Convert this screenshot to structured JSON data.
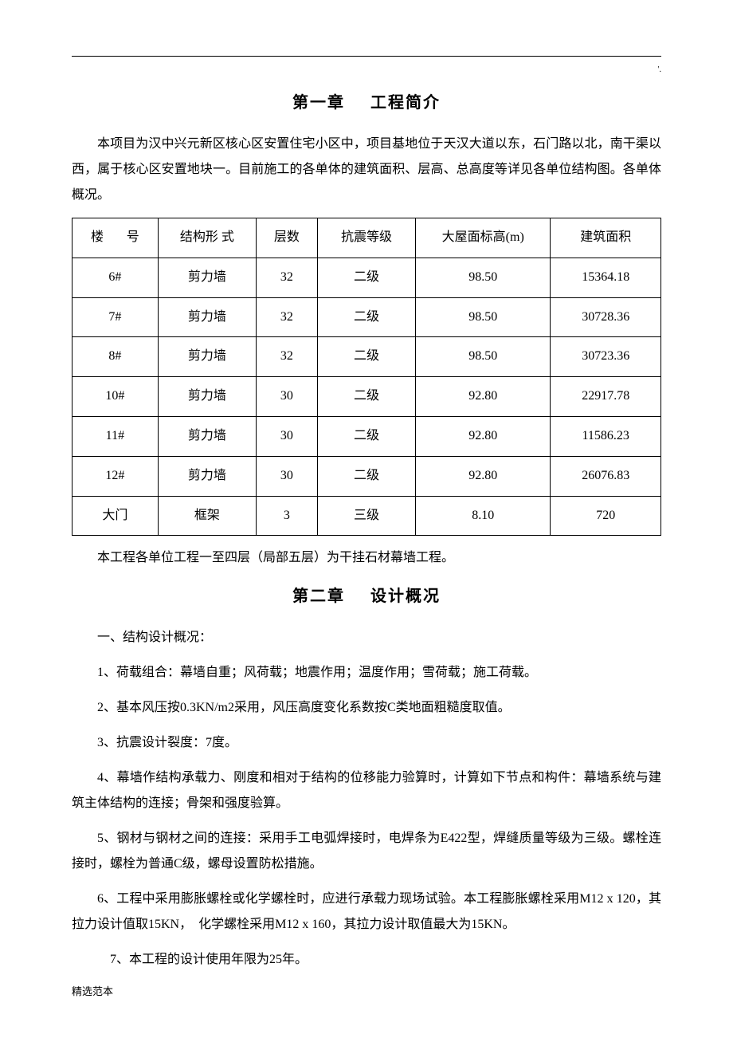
{
  "topDot": "'.",
  "chapter1": {
    "titleLeft": "第一章",
    "titleRight": "工程简介",
    "intro": "本项目为汉中兴元新区核心区安置住宅小区中，项目基地位于天汉大道以东，石门路以北，南干渠以西，属于核心区安置地块一。目前施工的各单体的建筑面积、层高、总高度等详见各单位结构图。各单体概况。",
    "table": {
      "headers": {
        "c0a": "楼",
        "c0b": "号",
        "c1a": "结构形",
        "c1b": "式",
        "c2": "层数",
        "c3": "抗震等级",
        "c4": "大屋面标高(m)",
        "c5": "建筑面积"
      },
      "rows": [
        {
          "c0": "6#",
          "c1": "剪力墙",
          "c2": "32",
          "c3": "二级",
          "c4": "98.50",
          "c5": "15364.18"
        },
        {
          "c0": "7#",
          "c1": "剪力墙",
          "c2": "32",
          "c3": "二级",
          "c4": "98.50",
          "c5": "30728.36"
        },
        {
          "c0": "8#",
          "c1": "剪力墙",
          "c2": "32",
          "c3": "二级",
          "c4": "98.50",
          "c5": "30723.36"
        },
        {
          "c0": "10#",
          "c1": "剪力墙",
          "c2": "30",
          "c3": "二级",
          "c4": "92.80",
          "c5": "22917.78"
        },
        {
          "c0": "11#",
          "c1": "剪力墙",
          "c2": "30",
          "c3": "二级",
          "c4": "92.80",
          "c5": "11586.23"
        },
        {
          "c0": "12#",
          "c1": "剪力墙",
          "c2": "30",
          "c3": "二级",
          "c4": "92.80",
          "c5": "26076.83"
        },
        {
          "c0": "大门",
          "c1": "框架",
          "c2": "3",
          "c3": "三级",
          "c4": "8.10",
          "c5": "720"
        }
      ]
    },
    "afterTable": "本工程各单位工程一至四层（局部五层）为干挂石材幕墙工程。"
  },
  "chapter2": {
    "titleLeft": "第二章",
    "titleRight": "设计概况",
    "p1": "一、结构设计概况：",
    "p2": "1、荷载组合：幕墙自重；风荷载；地震作用；温度作用；雪荷载；施工荷载。",
    "p3": "2、基本风压按0.3KN/m2采用，风压高度变化系数按C类地面粗糙度取值。",
    "p4": "3、抗震设计裂度：7度。",
    "p5": "4、幕墙作结构承载力、刚度和相对于结构的位移能力验算时，计算如下节点和构件：幕墙系统与建筑主体结构的连接；骨架和强度验算。",
    "p6": "5、钢材与钢材之间的连接：采用手工电弧焊接时，电焊条为E422型，焊缝质量等级为三级。螺栓连接时，螺栓为普通C级，螺母设置防松措施。",
    "p7": "6、工程中采用膨胀螺栓或化学螺栓时，应进行承载力现场试验。本工程膨胀螺栓采用M12 x 120，其拉力设计值取15KN，　化学螺栓采用M12 x 160，其拉力设计取值最大为15KN。",
    "p8": "7、本工程的设计使用年限为25年。"
  },
  "footer": "精选范本"
}
